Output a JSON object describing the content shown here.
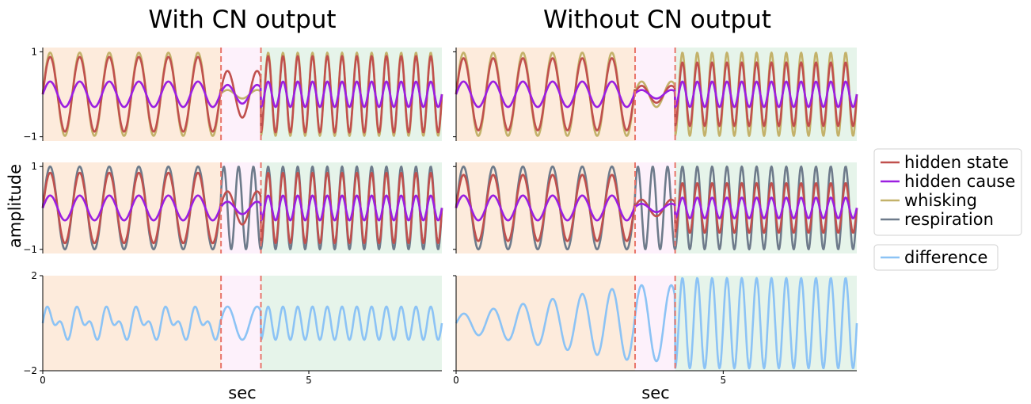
{
  "chart_data": {
    "type": "line",
    "column_titles": [
      "With CN output",
      "Without CN output"
    ],
    "xlabel": "sec",
    "ylabel": "amplitude",
    "xlim": [
      0,
      7.5
    ],
    "x_ticks": [
      0,
      5
    ],
    "phase_boundaries_sec": [
      3.35,
      4.1
    ],
    "phase_colors": [
      "#fdebdc",
      "#fdf1fb",
      "#e6f4ea"
    ],
    "boundary_color": "#e8756a",
    "row_ylims": [
      [
        -1.1,
        1.1
      ],
      [
        -1.1,
        1.1
      ],
      [
        -2,
        2
      ]
    ],
    "row_yticks": [
      [
        -1,
        1
      ],
      [
        -1,
        1
      ],
      [
        -2,
        2
      ]
    ],
    "tick_labels": {
      "y_row1": [
        "1",
        "−1"
      ],
      "y_row2": [
        "1",
        "−1"
      ],
      "y_row3": [
        "2",
        "−2"
      ],
      "x": [
        "0",
        "5"
      ]
    },
    "series_styles": {
      "hidden state": "#c0504d",
      "hidden cause": "#9b1fe0",
      "whisking": "#c3b26a",
      "respiration": "#6e7b8b",
      "difference": "#8cc3f5"
    },
    "legend": {
      "placement": "right",
      "group1": [
        "hidden state",
        "hidden cause",
        "whisking",
        "respiration"
      ],
      "group2": [
        "difference"
      ]
    },
    "panels": [
      {
        "column": "With CN output",
        "row": 1,
        "series": [
          {
            "name": "whisking",
            "phases": [
              {
                "freq": 1.8,
                "amp": 0.98
              },
              {
                "freq": 1.8,
                "amp": 0.1
              },
              {
                "freq": 3.6,
                "amp": 0.98
              }
            ]
          },
          {
            "name": "hidden state",
            "phases": [
              {
                "freq": 1.8,
                "amp": 0.88
              },
              {
                "freq": 1.8,
                "amp": 0.55
              },
              {
                "freq": 3.6,
                "amp": 0.9
              }
            ]
          },
          {
            "name": "hidden cause",
            "phases": [
              {
                "freq": 1.8,
                "amp": 0.3
              },
              {
                "freq": 1.8,
                "amp": 0.22
              },
              {
                "freq": 3.6,
                "amp": 0.3
              }
            ]
          }
        ]
      },
      {
        "column": "Without CN output",
        "row": 1,
        "series": [
          {
            "name": "whisking",
            "phases": [
              {
                "freq": 1.8,
                "amp": 0.98
              },
              {
                "freq": 1.8,
                "amp": 0.3
              },
              {
                "freq": 3.6,
                "amp": 0.98
              }
            ]
          },
          {
            "name": "hidden state",
            "phases": [
              {
                "freq": 1.8,
                "amp": 0.85
              },
              {
                "freq": 1.8,
                "amp": 0.2
              },
              {
                "freq": 3.6,
                "amp": 0.75
              }
            ]
          },
          {
            "name": "hidden cause",
            "phases": [
              {
                "freq": 1.8,
                "amp": 0.3
              },
              {
                "freq": 1.8,
                "amp": 0.1
              },
              {
                "freq": 3.6,
                "amp": 0.3
              }
            ]
          }
        ]
      },
      {
        "column": "With CN output",
        "row": 2,
        "series": [
          {
            "name": "respiration",
            "phases": [
              {
                "freq": 1.8,
                "amp": 1.0
              },
              {
                "freq": 3.6,
                "amp": 1.0
              },
              {
                "freq": 3.6,
                "amp": 1.0
              }
            ]
          },
          {
            "name": "hidden state",
            "phases": [
              {
                "freq": 1.8,
                "amp": 0.85
              },
              {
                "freq": 1.8,
                "amp": 0.4
              },
              {
                "freq": 3.6,
                "amp": 0.85
              }
            ]
          },
          {
            "name": "hidden cause",
            "phases": [
              {
                "freq": 1.8,
                "amp": 0.3
              },
              {
                "freq": 1.8,
                "amp": 0.15
              },
              {
                "freq": 3.6,
                "amp": 0.3
              }
            ]
          }
        ]
      },
      {
        "column": "Without CN output",
        "row": 2,
        "series": [
          {
            "name": "respiration",
            "phases": [
              {
                "freq": 1.8,
                "amp": 1.0
              },
              {
                "freq": 3.6,
                "amp": 1.0
              },
              {
                "freq": 3.6,
                "amp": 1.0
              }
            ]
          },
          {
            "name": "hidden state",
            "phases": [
              {
                "freq": 1.8,
                "amp": 0.8
              },
              {
                "freq": 1.8,
                "amp": 0.2
              },
              {
                "freq": 3.6,
                "amp": 0.6
              }
            ]
          },
          {
            "name": "hidden cause",
            "phases": [
              {
                "freq": 1.8,
                "amp": 0.3
              },
              {
                "freq": 1.8,
                "amp": 0.1
              },
              {
                "freq": 3.6,
                "amp": 0.25
              }
            ]
          }
        ]
      },
      {
        "column": "With CN output",
        "row": 3,
        "series": [
          {
            "name": "difference",
            "phases": [
              {
                "freq": 1.8,
                "amp": 0.45,
                "harmonic": 0.35
              },
              {
                "freq": 1.8,
                "amp": 0.7
              },
              {
                "freq": 3.6,
                "amp": 0.7
              }
            ]
          }
        ]
      },
      {
        "column": "Without CN output",
        "row": 3,
        "series": [
          {
            "name": "difference",
            "phases": [
              {
                "freq": 1.8,
                "amp": 0.35,
                "growth": 1.6
              },
              {
                "freq": 1.8,
                "amp": 1.6
              },
              {
                "freq": 3.6,
                "amp": 1.9
              }
            ]
          }
        ]
      }
    ]
  }
}
